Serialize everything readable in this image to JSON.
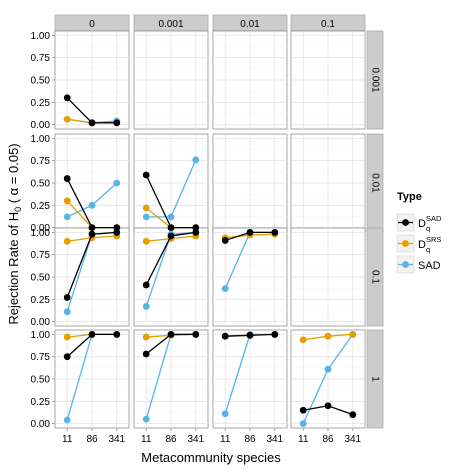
{
  "chart_data": {
    "type": "line",
    "facet_cols": [
      "0",
      "0.001",
      "0.01",
      "0.1"
    ],
    "facet_rows": [
      "0.001",
      "0.01",
      "0.1",
      "1"
    ],
    "x": [
      "11",
      "86",
      "341"
    ],
    "xlabel": "Metacommunity species",
    "ylabel_parts": {
      "pre": "Rejection Rate of H",
      "sub": "0",
      "post": " ( α = 0.05)"
    },
    "ylim": [
      0,
      1
    ],
    "yticks": [
      "0.00",
      "0.25",
      "0.50",
      "0.75",
      "1.00"
    ],
    "grid": true,
    "legend": {
      "title": "Type",
      "position": "right",
      "entries": [
        {
          "key": "DSAD",
          "main": "D",
          "sup": "SAD",
          "sub": "q",
          "color": "#000000"
        },
        {
          "key": "DSRS",
          "main": "D",
          "sup": "SRS",
          "sub": "q",
          "color": "#E69F00"
        },
        {
          "key": "SAD",
          "main": "SAD",
          "sup": "",
          "sub": "",
          "color": "#56B4E9"
        }
      ]
    },
    "panels": [
      {
        "row": 0,
        "col": 0,
        "series": {
          "DSAD": [
            0.3,
            0.02,
            0.02
          ],
          "DSRS": [
            0.06,
            0.02,
            0.02
          ],
          "SAD": [
            0.06,
            0.02,
            0.04
          ]
        }
      },
      {
        "row": 1,
        "col": 0,
        "series": {
          "DSAD": [
            0.55,
            0.0,
            0.0
          ],
          "DSRS": [
            0.3,
            0.0,
            0.0
          ],
          "SAD": [
            0.12,
            0.25,
            0.5
          ]
        }
      },
      {
        "row": 1,
        "col": 1,
        "series": {
          "DSAD": [
            0.59,
            0.0,
            0.0
          ],
          "DSRS": [
            0.22,
            0.0,
            0.0
          ],
          "SAD": [
            0.12,
            0.12,
            0.76
          ]
        }
      },
      {
        "row": 2,
        "col": 0,
        "series": {
          "DSAD": [
            0.27,
            0.98,
            1.0
          ],
          "DSRS": [
            0.9,
            0.94,
            0.96
          ],
          "SAD": [
            0.11,
            0.98,
            1.0
          ]
        }
      },
      {
        "row": 2,
        "col": 1,
        "series": {
          "DSAD": [
            0.41,
            0.96,
            1.0
          ],
          "DSRS": [
            0.9,
            0.93,
            0.96
          ],
          "SAD": [
            0.17,
            0.98,
            1.0
          ]
        }
      },
      {
        "row": 2,
        "col": 2,
        "series": {
          "DSAD": [
            0.91,
            1.0,
            1.0
          ],
          "DSRS": [
            0.94,
            0.97,
            0.98
          ],
          "SAD": [
            0.37,
            1.0,
            1.0
          ]
        }
      },
      {
        "row": 3,
        "col": 0,
        "series": {
          "DSAD": [
            0.75,
            1.0,
            1.0
          ],
          "DSRS": [
            0.97,
            1.0,
            1.0
          ],
          "SAD": [
            0.04,
            1.0,
            1.0
          ]
        }
      },
      {
        "row": 3,
        "col": 1,
        "series": {
          "DSAD": [
            0.78,
            1.0,
            1.0
          ],
          "DSRS": [
            0.97,
            0.99,
            1.0
          ],
          "SAD": [
            0.05,
            1.0,
            1.0
          ]
        }
      },
      {
        "row": 3,
        "col": 2,
        "series": {
          "DSAD": [
            0.98,
            0.99,
            1.0
          ],
          "DSRS": [
            0.98,
            0.99,
            1.0
          ],
          "SAD": [
            0.11,
            1.0,
            1.0
          ]
        }
      },
      {
        "row": 3,
        "col": 3,
        "series": {
          "DSAD": [
            0.15,
            0.2,
            0.1
          ],
          "DSRS": [
            0.94,
            0.98,
            1.0
          ],
          "SAD": [
            0.0,
            0.61,
            1.0
          ]
        }
      }
    ]
  }
}
